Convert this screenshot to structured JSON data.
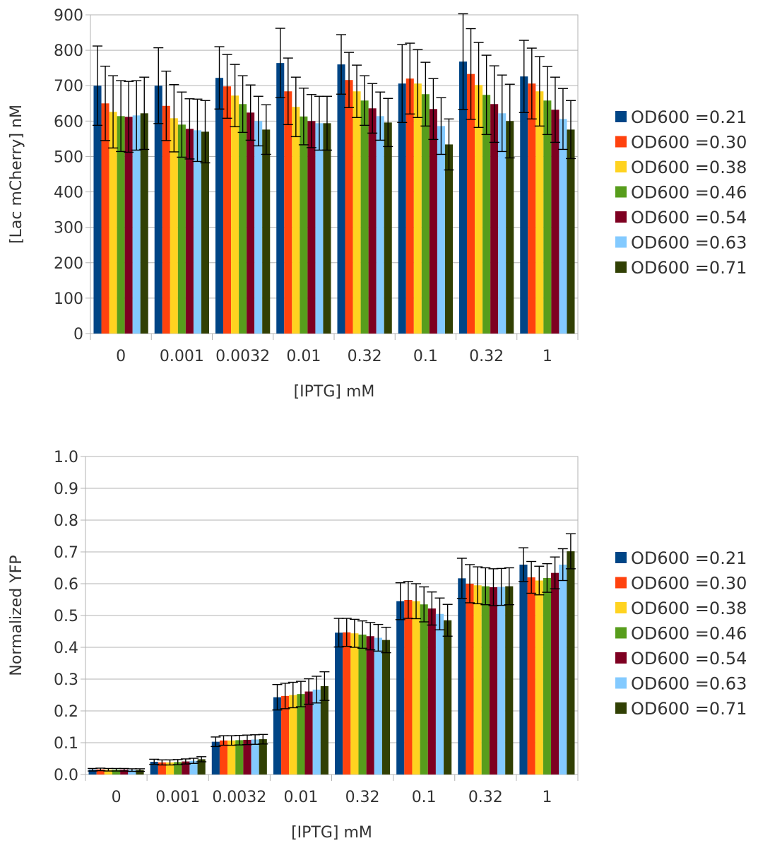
{
  "chart_data": [
    {
      "type": "bar",
      "title": "",
      "xlabel": "[IPTG] mM",
      "ylabel": "[Lac mCherry] nM",
      "ylim": [
        0,
        900
      ],
      "yticks": [
        "0",
        "100",
        "200",
        "300",
        "400",
        "500",
        "600",
        "700",
        "800",
        "900"
      ],
      "grid": true,
      "legend_position": "right",
      "categories": [
        "0",
        "0.001",
        "0.0032",
        "0.01",
        "0.32",
        "0.1",
        "0.32",
        "1"
      ],
      "series": [
        {
          "name": "OD600 =0.21",
          "color": "#004586",
          "values": [
            700,
            700,
            722,
            764,
            760,
            706,
            768,
            726
          ],
          "errors": [
            112,
            107,
            88,
            98,
            84,
            110,
            135,
            102
          ]
        },
        {
          "name": "OD600 =0.30",
          "color": "#ff420e",
          "values": [
            650,
            643,
            698,
            684,
            716,
            720,
            733,
            706
          ],
          "errors": [
            105,
            98,
            90,
            94,
            78,
            100,
            128,
            100
          ]
        },
        {
          "name": "OD600 =0.38",
          "color": "#ffd320",
          "values": [
            626,
            608,
            672,
            640,
            684,
            706,
            702,
            684
          ],
          "errors": [
            102,
            95,
            88,
            84,
            74,
            96,
            120,
            98
          ]
        },
        {
          "name": "OD600 =0.46",
          "color": "#579d1c",
          "values": [
            614,
            590,
            648,
            613,
            658,
            676,
            674,
            658
          ],
          "errors": [
            100,
            92,
            80,
            80,
            70,
            90,
            112,
            96
          ]
        },
        {
          "name": "OD600 =0.54",
          "color": "#7e0021",
          "values": [
            612,
            578,
            624,
            600,
            636,
            634,
            648,
            632
          ],
          "errors": [
            100,
            85,
            78,
            75,
            70,
            86,
            108,
            92
          ]
        },
        {
          "name": "OD600 =0.63",
          "color": "#83caff",
          "values": [
            616,
            574,
            600,
            594,
            614,
            586,
            622,
            606
          ],
          "errors": [
            98,
            88,
            70,
            76,
            68,
            80,
            108,
            86
          ]
        },
        {
          "name": "OD600 =0.71",
          "color": "#314004",
          "values": [
            622,
            570,
            576,
            594,
            596,
            534,
            600,
            576
          ],
          "errors": [
            102,
            88,
            70,
            76,
            68,
            72,
            104,
            82
          ]
        }
      ]
    },
    {
      "type": "bar",
      "title": "",
      "xlabel": "[IPTG] mM",
      "ylabel": "Normalized YFP",
      "ylim": [
        0,
        1
      ],
      "yticks": [
        "0.0",
        "0.1",
        "0.2",
        "0.3",
        "0.4",
        "0.5",
        "0.6",
        "0.7",
        "0.8",
        "0.9",
        "1.0"
      ],
      "grid": true,
      "legend_position": "right",
      "categories": [
        "0",
        "0.001",
        "0.0032",
        "0.01",
        "0.32",
        "0.1",
        "0.32",
        "1"
      ],
      "series": [
        {
          "name": "OD600 =0.21",
          "color": "#004586",
          "values": [
            0.015,
            0.04,
            0.103,
            0.243,
            0.446,
            0.545,
            0.617,
            0.66
          ],
          "errors": [
            0.004,
            0.008,
            0.015,
            0.04,
            0.045,
            0.058,
            0.063,
            0.053
          ]
        },
        {
          "name": "OD600 =0.30",
          "color": "#ff420e",
          "values": [
            0.016,
            0.038,
            0.107,
            0.247,
            0.447,
            0.549,
            0.6,
            0.62
          ],
          "errors": [
            0.004,
            0.008,
            0.015,
            0.04,
            0.044,
            0.058,
            0.06,
            0.05
          ]
        },
        {
          "name": "OD600 =0.38",
          "color": "#ffd320",
          "values": [
            0.015,
            0.038,
            0.107,
            0.25,
            0.444,
            0.545,
            0.595,
            0.61
          ],
          "errors": [
            0.004,
            0.008,
            0.015,
            0.04,
            0.044,
            0.055,
            0.058,
            0.045
          ]
        },
        {
          "name": "OD600 =0.46",
          "color": "#579d1c",
          "values": [
            0.015,
            0.039,
            0.108,
            0.253,
            0.44,
            0.535,
            0.592,
            0.618
          ],
          "errors": [
            0.004,
            0.008,
            0.015,
            0.04,
            0.043,
            0.055,
            0.058,
            0.045
          ]
        },
        {
          "name": "OD600 =0.54",
          "color": "#7e0021",
          "values": [
            0.015,
            0.041,
            0.109,
            0.261,
            0.435,
            0.522,
            0.589,
            0.634
          ],
          "errors": [
            0.004,
            0.008,
            0.015,
            0.04,
            0.043,
            0.052,
            0.058,
            0.05
          ]
        },
        {
          "name": "OD600 =0.63",
          "color": "#83caff",
          "values": [
            0.014,
            0.043,
            0.11,
            0.267,
            0.43,
            0.505,
            0.59,
            0.66
          ],
          "errors": [
            0.004,
            0.008,
            0.015,
            0.042,
            0.042,
            0.05,
            0.058,
            0.05
          ]
        },
        {
          "name": "OD600 =0.71",
          "color": "#314004",
          "values": [
            0.014,
            0.048,
            0.111,
            0.278,
            0.423,
            0.485,
            0.592,
            0.702
          ],
          "errors": [
            0.004,
            0.008,
            0.015,
            0.045,
            0.04,
            0.05,
            0.058,
            0.055
          ]
        }
      ]
    }
  ]
}
